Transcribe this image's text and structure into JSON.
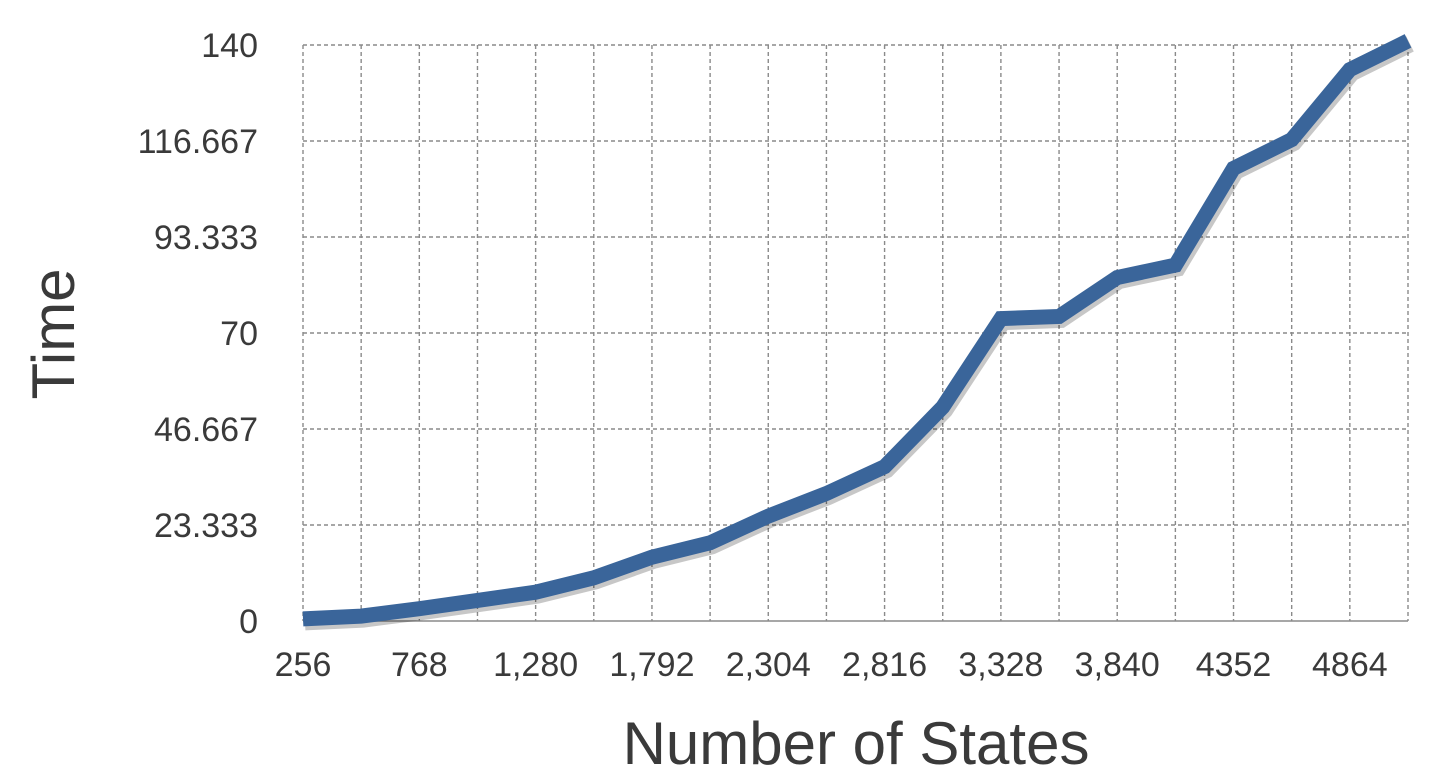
{
  "chart_data": {
    "type": "line",
    "xlabel": "Number of States",
    "ylabel": "Time",
    "ylim": [
      0,
      140
    ],
    "yticks": [
      "0",
      "23.333",
      "46.667",
      "70",
      "93.333",
      "116.667",
      "140"
    ],
    "ytick_values": [
      0,
      23.333,
      46.667,
      70,
      93.333,
      116.667,
      140
    ],
    "xtick_labels": [
      "256",
      "768",
      "1,280",
      "1,792",
      "2,304",
      "2,816",
      "3,328",
      "3,840",
      "4352",
      "4864"
    ],
    "x": [
      256,
      512,
      768,
      1024,
      1280,
      1536,
      1792,
      2048,
      2304,
      2560,
      2816,
      3072,
      3328,
      3584,
      3840,
      4096,
      4352,
      4608,
      4864,
      5120
    ],
    "series": [
      {
        "color": "#3a659a",
        "values": [
          0.5,
          1.2,
          3.0,
          5.0,
          7.0,
          10.5,
          15.5,
          19.0,
          25.5,
          31.0,
          37.5,
          52.0,
          73.5,
          74.0,
          83.5,
          86.5,
          110.0,
          117.0,
          134.0,
          141.0
        ]
      }
    ],
    "grid": true,
    "x_minor_gridlines_between_labels": 1
  }
}
